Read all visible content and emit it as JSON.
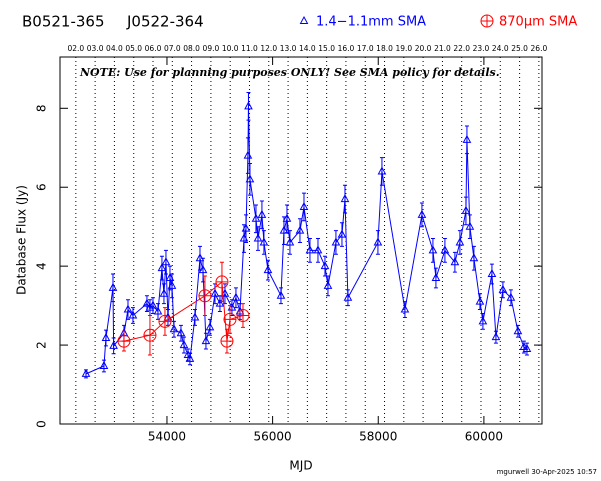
{
  "chart_data": {
    "type": "scatter",
    "title": "B0521-365",
    "subtitle": "J0522-364",
    "annotations": [
      "NOTE: Use for planning purposes ONLY!  See SMA policy for details.",
      "mgurwell 30-Apr-2025 10:57"
    ],
    "x_label": "MJD",
    "y_label": "Database Flux (Jy)",
    "xlim": [
      51975,
      61100
    ],
    "ylim": [
      0,
      9.3
    ],
    "xticks": [
      54000,
      56000,
      58000,
      60000
    ],
    "yticks": [
      0,
      2,
      4,
      6,
      8
    ],
    "top_ticks": [
      {
        "value": 52275,
        "label": "02.0"
      },
      {
        "value": 52640,
        "label": "03.0"
      },
      {
        "value": 53005,
        "label": "04.0"
      },
      {
        "value": 53371,
        "label": "05.0"
      },
      {
        "value": 53736,
        "label": "06.0"
      },
      {
        "value": 54101,
        "label": "07.0"
      },
      {
        "value": 54466,
        "label": "08.0"
      },
      {
        "value": 54832,
        "label": "09.0"
      },
      {
        "value": 55197,
        "label": "10.0"
      },
      {
        "value": 55562,
        "label": "11.0"
      },
      {
        "value": 55927,
        "label": "12.0"
      },
      {
        "value": 56293,
        "label": "13.0"
      },
      {
        "value": 56658,
        "label": "14.0"
      },
      {
        "value": 57023,
        "label": "15.0"
      },
      {
        "value": 57388,
        "label": "16.0"
      },
      {
        "value": 57754,
        "label": "17.0"
      },
      {
        "value": 58119,
        "label": "18.0"
      },
      {
        "value": 58484,
        "label": "19.0"
      },
      {
        "value": 58849,
        "label": "20.0"
      },
      {
        "value": 59215,
        "label": "21.0"
      },
      {
        "value": 59580,
        "label": "22.0"
      },
      {
        "value": 59945,
        "label": "23.0"
      },
      {
        "value": 60310,
        "label": "24.0"
      },
      {
        "value": 60676,
        "label": "25.0"
      },
      {
        "value": 61041,
        "label": "26.0"
      }
    ],
    "series": [
      {
        "name": "1.4−1.1mm SMA",
        "color": "#0000ff",
        "marker": "triangle",
        "x": [
          52467,
          52807,
          52845,
          52978,
          52990,
          53186,
          53262,
          53356,
          53621,
          53678,
          53735,
          53830,
          53905,
          53943,
          53981,
          54019,
          54057,
          54095,
          54133,
          54265,
          54322,
          54398,
          54435,
          54530,
          54625,
          54682,
          54738,
          54814,
          54909,
          55003,
          55098,
          55230,
          55306,
          55382,
          55458,
          55496,
          55533,
          55543,
          55571,
          55685,
          55723,
          55798,
          55836,
          55912,
          56158,
          56215,
          56272,
          56328,
          56518,
          56594,
          56707,
          56859,
          56991,
          57048,
          57199,
          57313,
          57370,
          57426,
          57994,
          58070,
          58505,
          58827,
          59035,
          59092,
          59262,
          59451,
          59546,
          59660,
          59679,
          59735,
          59811,
          59925,
          59981,
          60152,
          60228,
          60360,
          60511,
          60644,
          60758,
          60815
        ],
        "values": [
          1.27,
          1.47,
          2.18,
          3.45,
          1.98,
          2.3,
          2.9,
          2.75,
          3.05,
          2.95,
          3.0,
          2.85,
          3.95,
          3.3,
          4.1,
          2.7,
          3.7,
          3.5,
          2.4,
          2.3,
          2.0,
          1.75,
          1.65,
          2.7,
          4.2,
          3.9,
          2.1,
          2.45,
          3.3,
          3.05,
          3.3,
          2.95,
          3.2,
          2.85,
          4.7,
          4.95,
          6.8,
          8.05,
          6.2,
          5.2,
          4.7,
          5.3,
          4.6,
          3.9,
          3.25,
          4.9,
          5.2,
          4.6,
          4.9,
          5.5,
          4.4,
          4.4,
          4.0,
          3.5,
          4.6,
          4.8,
          5.7,
          3.2,
          4.6,
          6.4,
          2.9,
          5.3,
          4.4,
          3.7,
          4.4,
          4.1,
          4.6,
          5.4,
          7.2,
          5.0,
          4.2,
          3.1,
          2.6,
          3.8,
          2.2,
          3.4,
          3.2,
          2.35,
          1.95,
          1.9
        ],
        "errors": [
          0.1,
          0.15,
          0.2,
          0.35,
          0.2,
          0.2,
          0.25,
          0.2,
          0.2,
          0.2,
          0.2,
          0.2,
          0.3,
          0.25,
          0.3,
          0.2,
          0.3,
          0.3,
          0.2,
          0.2,
          0.2,
          0.15,
          0.15,
          0.2,
          0.3,
          0.3,
          0.2,
          0.2,
          0.25,
          0.2,
          0.25,
          0.2,
          0.25,
          0.2,
          0.35,
          0.35,
          0.45,
          0.35,
          0.4,
          0.35,
          0.3,
          0.35,
          0.3,
          0.25,
          0.2,
          0.35,
          0.35,
          0.3,
          0.3,
          0.35,
          0.3,
          0.3,
          0.25,
          0.25,
          0.3,
          0.3,
          0.35,
          0.2,
          0.3,
          0.35,
          0.2,
          0.3,
          0.3,
          0.25,
          0.3,
          0.25,
          0.3,
          0.35,
          0.35,
          0.3,
          0.3,
          0.2,
          0.2,
          0.25,
          0.15,
          0.2,
          0.2,
          0.15,
          0.15,
          0.15
        ]
      },
      {
        "name": "870μm SMA",
        "color": "#ff0000",
        "marker": "circle-plus",
        "x": [
          53186,
          53678,
          53962,
          54719,
          55041,
          55136,
          55193,
          55439
        ],
        "values": [
          2.1,
          2.25,
          2.6,
          3.25,
          3.6,
          2.1,
          2.65,
          2.75
        ],
        "errors": [
          0.25,
          0.5,
          0.35,
          0.5,
          0.5,
          0.3,
          0.35,
          0.3
        ]
      }
    ]
  }
}
